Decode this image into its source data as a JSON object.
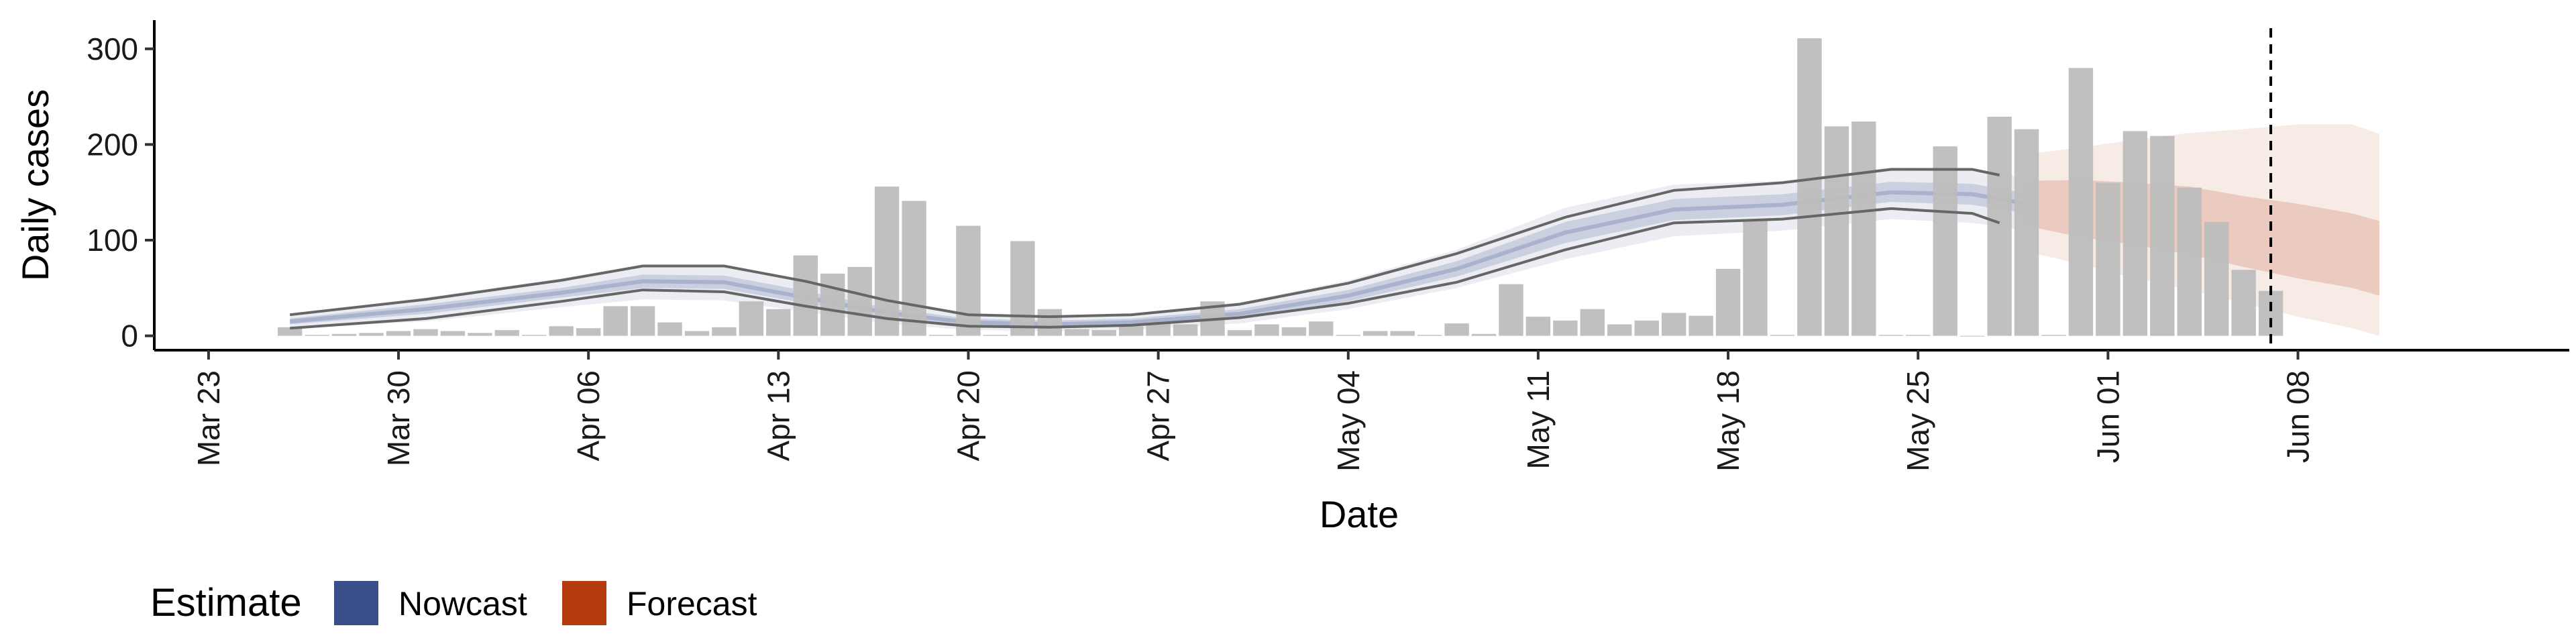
{
  "chart_data": {
    "type": "bar",
    "xlabel": "Date",
    "ylabel": "Daily cases",
    "ylim": [
      -15,
      330
    ],
    "y_ticks": [
      0,
      100,
      200,
      300
    ],
    "x_range": [
      "2020-03-21",
      "2020-06-18"
    ],
    "x_ticks": [
      {
        "date": "2020-03-23",
        "label": "Mar 23"
      },
      {
        "date": "2020-03-30",
        "label": "Mar 30"
      },
      {
        "date": "2020-04-06",
        "label": "Apr 06"
      },
      {
        "date": "2020-04-13",
        "label": "Apr 13"
      },
      {
        "date": "2020-04-20",
        "label": "Apr 20"
      },
      {
        "date": "2020-04-27",
        "label": "Apr 27"
      },
      {
        "date": "2020-05-04",
        "label": "May 04"
      },
      {
        "date": "2020-05-11",
        "label": "May 11"
      },
      {
        "date": "2020-05-18",
        "label": "May 18"
      },
      {
        "date": "2020-05-25",
        "label": "May 25"
      },
      {
        "date": "2020-06-01",
        "label": "Jun 01"
      },
      {
        "date": "2020-06-08",
        "label": "Jun 08"
      }
    ],
    "grid": false,
    "legend_position": "bottom-left",
    "vline_date": "2020-06-07",
    "colors": {
      "bars": "#bdbdbd",
      "nowcast": "#3a4f8a",
      "forecast": "#b53a0e",
      "vline": "#000000",
      "observed_lines": "#666666"
    },
    "reported_cases": {
      "dates": [
        "2020-03-26",
        "2020-03-27",
        "2020-03-28",
        "2020-03-29",
        "2020-03-30",
        "2020-03-31",
        "2020-04-01",
        "2020-04-02",
        "2020-04-03",
        "2020-04-04",
        "2020-04-05",
        "2020-04-06",
        "2020-04-07",
        "2020-04-08",
        "2020-04-09",
        "2020-04-10",
        "2020-04-11",
        "2020-04-12",
        "2020-04-13",
        "2020-04-14",
        "2020-04-15",
        "2020-04-16",
        "2020-04-17",
        "2020-04-18",
        "2020-04-19",
        "2020-04-20",
        "2020-04-21",
        "2020-04-22",
        "2020-04-23",
        "2020-04-24",
        "2020-04-25",
        "2020-04-26",
        "2020-04-27",
        "2020-04-28",
        "2020-04-29",
        "2020-04-30",
        "2020-05-01",
        "2020-05-02",
        "2020-05-03",
        "2020-05-04",
        "2020-05-05",
        "2020-05-06",
        "2020-05-07",
        "2020-05-08",
        "2020-05-09",
        "2020-05-10",
        "2020-05-11",
        "2020-05-12",
        "2020-05-13",
        "2020-05-14",
        "2020-05-15",
        "2020-05-16",
        "2020-05-17",
        "2020-05-18",
        "2020-05-19",
        "2020-05-20",
        "2020-05-21",
        "2020-05-22",
        "2020-05-23",
        "2020-05-24",
        "2020-05-25",
        "2020-05-26",
        "2020-05-27",
        "2020-05-28",
        "2020-05-29",
        "2020-05-30",
        "2020-05-31",
        "2020-06-01",
        "2020-06-02",
        "2020-06-03",
        "2020-06-04",
        "2020-06-05",
        "2020-06-06",
        "2020-06-07"
      ],
      "values": [
        9,
        1,
        2,
        3,
        5,
        7,
        5,
        3,
        6,
        1,
        10,
        8,
        31,
        31,
        14,
        5,
        9,
        36,
        28,
        84,
        65,
        72,
        156,
        141,
        1,
        115,
        1,
        99,
        28,
        7,
        6,
        10,
        14,
        12,
        36,
        6,
        12,
        9,
        15,
        1,
        5,
        5,
        1,
        13,
        2,
        54,
        20,
        16,
        28,
        12,
        16,
        24,
        21,
        70,
        120,
        1,
        311,
        219,
        224,
        1,
        1,
        198,
        0,
        229,
        216,
        1,
        280,
        160,
        214,
        209,
        155,
        119,
        69,
        47
      ]
    },
    "nowcast": {
      "dates": [
        "2020-03-26",
        "2020-03-31",
        "2020-04-05",
        "2020-04-08",
        "2020-04-11",
        "2020-04-14",
        "2020-04-17",
        "2020-04-20",
        "2020-04-23",
        "2020-04-26",
        "2020-04-30",
        "2020-05-04",
        "2020-05-08",
        "2020-05-12",
        "2020-05-16",
        "2020-05-20",
        "2020-05-24",
        "2020-05-27",
        "2020-05-29"
      ],
      "median": [
        15,
        28,
        45,
        57,
        56,
        40,
        24,
        14,
        12,
        14,
        23,
        42,
        70,
        108,
        132,
        137,
        150,
        148,
        138
      ],
      "lower_90": [
        8,
        15,
        30,
        38,
        37,
        25,
        13,
        6,
        5,
        6,
        13,
        28,
        50,
        80,
        104,
        110,
        122,
        118,
        110
      ],
      "upper_90": [
        22,
        40,
        60,
        74,
        74,
        57,
        37,
        24,
        21,
        23,
        35,
        58,
        90,
        134,
        158,
        162,
        176,
        175,
        165
      ],
      "lower_50": [
        12,
        23,
        40,
        50,
        49,
        34,
        19,
        10,
        9,
        10,
        18,
        36,
        62,
        97,
        121,
        126,
        140,
        137,
        128
      ],
      "upper_50": [
        18,
        33,
        50,
        64,
        63,
        47,
        29,
        18,
        16,
        18,
        28,
        48,
        78,
        119,
        143,
        148,
        161,
        159,
        149
      ]
    },
    "observed_interval": {
      "dates": [
        "2020-03-26",
        "2020-03-31",
        "2020-04-05",
        "2020-04-08",
        "2020-04-11",
        "2020-04-14",
        "2020-04-17",
        "2020-04-20",
        "2020-04-23",
        "2020-04-26",
        "2020-04-30",
        "2020-05-04",
        "2020-05-08",
        "2020-05-12",
        "2020-05-16",
        "2020-05-20",
        "2020-05-24",
        "2020-05-27",
        "2020-05-28"
      ],
      "lower": [
        8,
        18,
        36,
        48,
        46,
        31,
        18,
        10,
        9,
        11,
        19,
        34,
        56,
        90,
        118,
        122,
        133,
        128,
        118
      ],
      "upper": [
        22,
        38,
        58,
        73,
        73,
        57,
        37,
        22,
        20,
        22,
        33,
        55,
        86,
        124,
        152,
        160,
        174,
        174,
        168
      ]
    },
    "forecast": {
      "dates": [
        "2020-05-29",
        "2020-05-31",
        "2020-06-02",
        "2020-06-04",
        "2020-06-06",
        "2020-06-08",
        "2020-06-10",
        "2020-06-11"
      ],
      "median": [
        138,
        132,
        125,
        118,
        108,
        98,
        88,
        83
      ],
      "lower_90": [
        88,
        75,
        60,
        48,
        34,
        20,
        8,
        0
      ],
      "upper_90": [
        190,
        197,
        205,
        212,
        216,
        221,
        221,
        211
      ],
      "lower_50": [
        115,
        103,
        95,
        85,
        72,
        60,
        50,
        42
      ],
      "upper_50": [
        162,
        163,
        160,
        156,
        146,
        138,
        128,
        120
      ]
    },
    "legend": {
      "title": "Estimate",
      "items": [
        {
          "label": "Nowcast",
          "color": "#3a4f8a"
        },
        {
          "label": "Forecast",
          "color": "#b53a0e"
        }
      ]
    }
  }
}
